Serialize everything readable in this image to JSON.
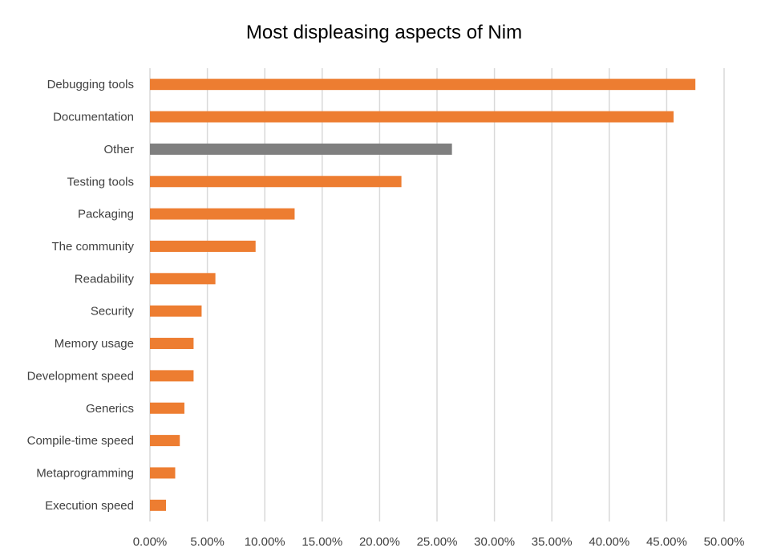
{
  "chart_data": {
    "type": "bar",
    "orientation": "horizontal",
    "title": "Most displeasing aspects of Nim",
    "xlabel": "",
    "ylabel": "",
    "xlim": [
      0,
      50
    ],
    "grid": true,
    "legend": "none",
    "x_ticks": [
      "0.00%",
      "5.00%",
      "10.00%",
      "15.00%",
      "20.00%",
      "25.00%",
      "30.00%",
      "35.00%",
      "40.00%",
      "45.00%",
      "50.00%"
    ],
    "categories": [
      "Debugging tools",
      "Documentation",
      "Other",
      "Testing tools",
      "Packaging",
      "The community",
      "Readability",
      "Security",
      "Memory usage",
      "Development speed",
      "Generics",
      "Compile-time speed",
      "Metaprogramming",
      "Execution speed"
    ],
    "values": [
      47.5,
      45.6,
      26.3,
      21.9,
      12.6,
      9.2,
      5.7,
      4.5,
      3.8,
      3.8,
      3.0,
      2.6,
      2.2,
      1.4
    ],
    "colors": {
      "default": "#ED7D31",
      "highlight": "#7F7F7F",
      "highlight_category": "Other",
      "grid": "#D9D9D9"
    }
  }
}
